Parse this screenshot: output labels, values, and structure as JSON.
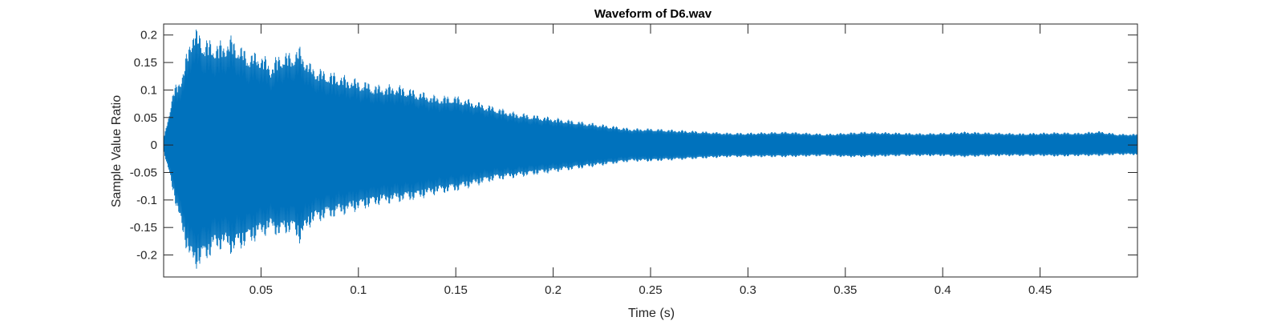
{
  "chart_data": {
    "type": "line",
    "title": "Waveform of D6.wav",
    "xlabel": "Time (s)",
    "ylabel": "Sample Value Ratio",
    "xlim": [
      0.0,
      0.5
    ],
    "ylim": [
      -0.24,
      0.22
    ],
    "xticks": [
      0.05,
      0.1,
      0.15,
      0.2,
      0.25,
      0.3,
      0.35,
      0.4,
      0.45
    ],
    "xtick_labels": [
      "0.05",
      "0.1",
      "0.15",
      "0.2",
      "0.25",
      "0.3",
      "0.35",
      "0.4",
      "0.45"
    ],
    "yticks": [
      0.2,
      0.15,
      0.1,
      0.05,
      0,
      -0.05,
      -0.1,
      -0.15,
      -0.2
    ],
    "ytick_labels": [
      "0.2",
      "0.15",
      "0.1",
      "0.05",
      "0",
      "-0.05",
      "-0.1",
      "-0.15",
      "-0.2"
    ],
    "grid": false,
    "line_color": "#0072BD",
    "series": [
      {
        "x": [
          0.0,
          0.005,
          0.01,
          0.015,
          0.02,
          0.025,
          0.03,
          0.035,
          0.04,
          0.045,
          0.05,
          0.055,
          0.06,
          0.065,
          0.07,
          0.075,
          0.08,
          0.09,
          0.1,
          0.11,
          0.12,
          0.13,
          0.14,
          0.15,
          0.16,
          0.17,
          0.18,
          0.19,
          0.2,
          0.21,
          0.22,
          0.23,
          0.24,
          0.25,
          0.26,
          0.27,
          0.28,
          0.29,
          0.3,
          0.31,
          0.32,
          0.33,
          0.34,
          0.35,
          0.36,
          0.37,
          0.38,
          0.39,
          0.4,
          0.41,
          0.42,
          0.43,
          0.44,
          0.45,
          0.46,
          0.47,
          0.48,
          0.49,
          0.5
        ],
        "upper": [
          0.01,
          0.1,
          0.14,
          0.22,
          0.2,
          0.19,
          0.19,
          0.2,
          0.18,
          0.17,
          0.17,
          0.15,
          0.17,
          0.17,
          0.18,
          0.15,
          0.14,
          0.13,
          0.12,
          0.11,
          0.11,
          0.1,
          0.09,
          0.09,
          0.08,
          0.07,
          0.06,
          0.055,
          0.05,
          0.045,
          0.04,
          0.035,
          0.03,
          0.03,
          0.028,
          0.026,
          0.024,
          0.022,
          0.022,
          0.023,
          0.024,
          0.022,
          0.02,
          0.022,
          0.024,
          0.023,
          0.022,
          0.021,
          0.022,
          0.024,
          0.023,
          0.022,
          0.021,
          0.022,
          0.023,
          0.022,
          0.025,
          0.02,
          0.02
        ],
        "lower": [
          -0.01,
          -0.09,
          -0.17,
          -0.23,
          -0.22,
          -0.2,
          -0.19,
          -0.2,
          -0.19,
          -0.18,
          -0.17,
          -0.16,
          -0.17,
          -0.16,
          -0.18,
          -0.15,
          -0.14,
          -0.13,
          -0.12,
          -0.11,
          -0.105,
          -0.1,
          -0.09,
          -0.085,
          -0.075,
          -0.065,
          -0.06,
          -0.055,
          -0.05,
          -0.045,
          -0.04,
          -0.035,
          -0.03,
          -0.03,
          -0.028,
          -0.026,
          -0.024,
          -0.022,
          -0.022,
          -0.022,
          -0.022,
          -0.021,
          -0.02,
          -0.022,
          -0.022,
          -0.021,
          -0.02,
          -0.02,
          -0.02,
          -0.022,
          -0.021,
          -0.02,
          -0.02,
          -0.02,
          -0.021,
          -0.02,
          -0.02,
          -0.018,
          -0.018
        ]
      }
    ]
  }
}
